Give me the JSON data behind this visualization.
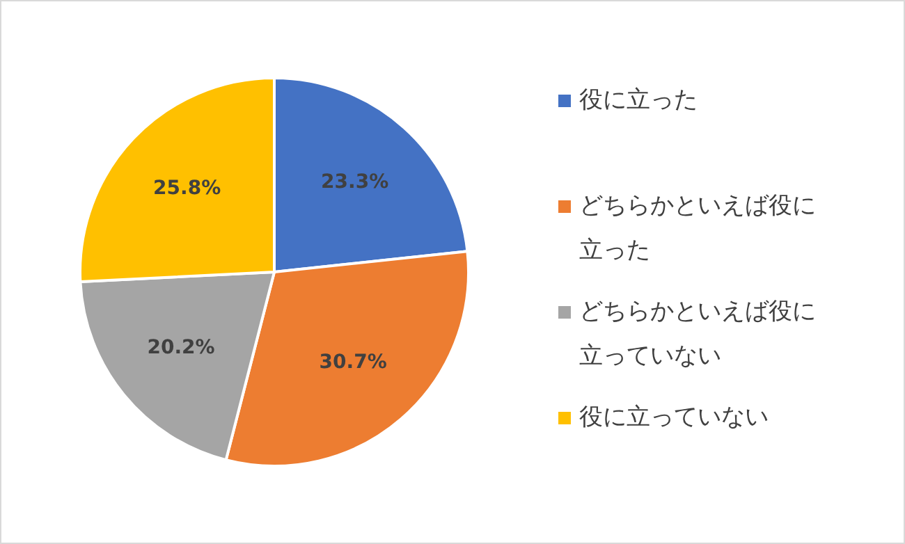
{
  "chart_data": {
    "type": "pie",
    "categories": [
      "役に立った",
      "どちらかといえば役に立った",
      "どちらかといえば役に立っていない",
      "役に立っていない"
    ],
    "values": [
      23.3,
      30.7,
      20.2,
      25.8
    ],
    "colors": [
      "#4472c4",
      "#ed7d31",
      "#a5a5a5",
      "#ffc000"
    ],
    "value_labels": [
      "23.3%",
      "30.7%",
      "20.2%",
      "25.8%"
    ],
    "legend": "right"
  }
}
